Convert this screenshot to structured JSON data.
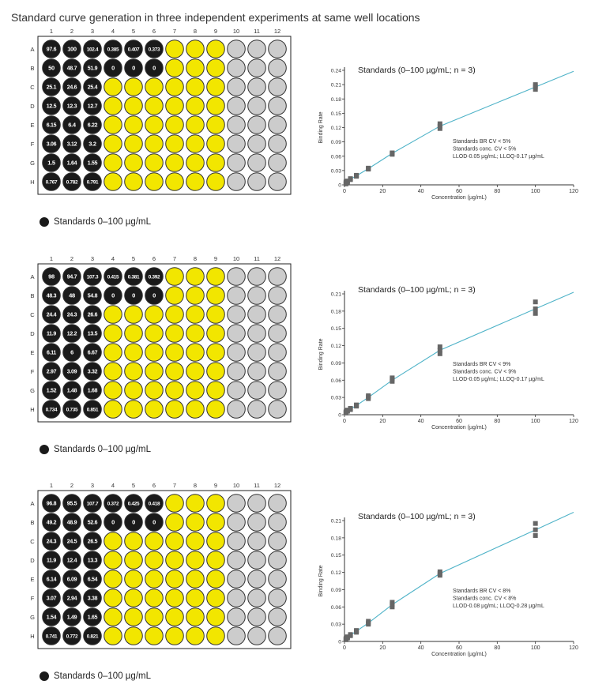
{
  "title": "Standard curve generation in three independent experiments at same well locations",
  "colors": {
    "standard_fill": "#1a1a1a",
    "yellow_fill": "#f2e600",
    "gray_fill": "#cccccc",
    "curve": "#4fb3c8",
    "marker": "#666666"
  },
  "plate": {
    "columns": [
      "1",
      "2",
      "3",
      "4",
      "5",
      "6",
      "7",
      "8",
      "9",
      "10",
      "11",
      "12"
    ],
    "rows": [
      "A",
      "B",
      "C",
      "D",
      "E",
      "F",
      "G",
      "H"
    ],
    "column_fill": [
      "black",
      "black",
      "black",
      "mixed",
      "mixed",
      "mixed",
      "yellow",
      "yellow",
      "yellow",
      "gray",
      "gray",
      "gray"
    ]
  },
  "legend_label": "Standards 0–100 µg/mL",
  "experiments": [
    {
      "well_values": [
        [
          "97.6",
          "100",
          "102.4",
          "0.385",
          "0.407",
          "0.373"
        ],
        [
          "50",
          "48.7",
          "51.9",
          "0",
          "0",
          "0"
        ],
        [
          "25.1",
          "24.6",
          "25.4"
        ],
        [
          "12.5",
          "12.3",
          "12.7"
        ],
        [
          "6.15",
          "6.4",
          "6.22"
        ],
        [
          "3.06",
          "3.12",
          "3.2"
        ],
        [
          "1.5",
          "1.64",
          "1.55"
        ],
        [
          "0.767",
          "0.782",
          "0.791"
        ]
      ],
      "chart_data": {
        "type": "scatter",
        "title": "Standards (0–100 µg/mL; n = 3)",
        "xlabel": "Concentration (µg/mL)",
        "ylabel": "Binding Rate",
        "xlim": [
          0,
          120
        ],
        "ylim": [
          0,
          0.24
        ],
        "xticks": [
          "0",
          "20",
          "40",
          "60",
          "80",
          "100",
          "120"
        ],
        "yticks": [
          "0",
          "0.03",
          "0.06",
          "0.09",
          "0.12",
          "0.15",
          "0.18",
          "0.21",
          "0.24"
        ],
        "series": [
          {
            "x": [
              0.78,
              1.56,
              3.125,
              6.25,
              12.5,
              25,
              50,
              100
            ],
            "y": [
              0.004,
              0.007,
              0.012,
              0.019,
              0.034,
              0.066,
              0.123,
              0.205
            ]
          }
        ],
        "points": [
          [
            0.78,
            0.002
          ],
          [
            0.78,
            0.004
          ],
          [
            0.78,
            0.006
          ],
          [
            1.56,
            0.006
          ],
          [
            1.56,
            0.008
          ],
          [
            1.56,
            0.007
          ],
          [
            3.125,
            0.011
          ],
          [
            3.125,
            0.012
          ],
          [
            3.125,
            0.013
          ],
          [
            6.25,
            0.018
          ],
          [
            6.25,
            0.02
          ],
          [
            6.25,
            0.019
          ],
          [
            12.5,
            0.033
          ],
          [
            12.5,
            0.035
          ],
          [
            12.5,
            0.034
          ],
          [
            25,
            0.064
          ],
          [
            25,
            0.067
          ],
          [
            25,
            0.066
          ],
          [
            50,
            0.118
          ],
          [
            50,
            0.123
          ],
          [
            50,
            0.128
          ],
          [
            100,
            0.2
          ],
          [
            100,
            0.206
          ],
          [
            100,
            0.21
          ]
        ],
        "annotations": [
          "Standards BR CV     < 5%",
          "Standards conc. CV   < 5%",
          "LLOD-0.05 µg/mL; LLOQ-0.17 µg/mL"
        ]
      }
    },
    {
      "well_values": [
        [
          "98",
          "94.7",
          "107.3",
          "0.415",
          "0.381",
          "0.392"
        ],
        [
          "48.3",
          "48",
          "54.8",
          "0",
          "0",
          "0"
        ],
        [
          "24.4",
          "24.3",
          "26.6"
        ],
        [
          "11.9",
          "12.2",
          "13.5"
        ],
        [
          "6.11",
          "6",
          "6.67"
        ],
        [
          "2.97",
          "3.09",
          "3.32"
        ],
        [
          "1.52",
          "1.48",
          "1.68"
        ],
        [
          "0.734",
          "0.735",
          "0.851"
        ]
      ],
      "chart_data": {
        "type": "scatter",
        "title": "Standards (0–100 µg/mL; n = 3)",
        "xlabel": "Concentration (µg/mL)",
        "ylabel": "Binding Rate",
        "xlim": [
          0,
          120
        ],
        "ylim": [
          0,
          0.21
        ],
        "xticks": [
          "0",
          "20",
          "40",
          "60",
          "80",
          "100",
          "120"
        ],
        "yticks": [
          "0",
          "0.03",
          "0.06",
          "0.09",
          "0.12",
          "0.15",
          "0.18",
          "0.21"
        ],
        "series": [
          {
            "x": [
              0.78,
              1.56,
              3.125,
              6.25,
              12.5,
              25,
              50,
              100
            ],
            "y": [
              0.004,
              0.007,
              0.01,
              0.016,
              0.03,
              0.06,
              0.112,
              0.184
            ]
          }
        ],
        "points": [
          [
            0.78,
            0.003
          ],
          [
            0.78,
            0.005
          ],
          [
            0.78,
            0.004
          ],
          [
            1.56,
            0.006
          ],
          [
            1.56,
            0.008
          ],
          [
            1.56,
            0.007
          ],
          [
            3.125,
            0.009
          ],
          [
            3.125,
            0.011
          ],
          [
            3.125,
            0.01
          ],
          [
            6.25,
            0.015
          ],
          [
            6.25,
            0.017
          ],
          [
            6.25,
            0.016
          ],
          [
            12.5,
            0.028
          ],
          [
            12.5,
            0.033
          ],
          [
            12.5,
            0.031
          ],
          [
            25,
            0.058
          ],
          [
            25,
            0.062
          ],
          [
            25,
            0.064
          ],
          [
            50,
            0.106
          ],
          [
            50,
            0.112
          ],
          [
            50,
            0.118
          ],
          [
            100,
            0.176
          ],
          [
            100,
            0.184
          ],
          [
            100,
            0.196
          ]
        ],
        "annotations": [
          "Standards BR CV      < 9%",
          "Standards conc. CV   < 9%",
          "LLOD-0.05 µg/mL; LLOQ-0.17 µg/mL"
        ]
      }
    },
    {
      "well_values": [
        [
          "96.8",
          "95.5",
          "107.7",
          "0.372",
          "0.425",
          "0.418"
        ],
        [
          "49.2",
          "48.9",
          "52.6",
          "0",
          "0",
          "0"
        ],
        [
          "24.3",
          "24.5",
          "26.5"
        ],
        [
          "11.9",
          "12.4",
          "13.3"
        ],
        [
          "6.14",
          "6.09",
          "6.54"
        ],
        [
          "3.07",
          "2.94",
          "3.38"
        ],
        [
          "1.54",
          "1.49",
          "1.65"
        ],
        [
          "0.741",
          "0.772",
          "0.821"
        ]
      ],
      "chart_data": {
        "type": "scatter",
        "title": "Standards (0–100 µg/mL; n = 3)",
        "xlabel": "Concentration (µg/mL)",
        "ylabel": "Binding Rate",
        "xlim": [
          0,
          120
        ],
        "ylim": [
          0,
          0.21
        ],
        "xticks": [
          "0",
          "20",
          "40",
          "60",
          "80",
          "100",
          "120"
        ],
        "yticks": [
          "0",
          "0.03",
          "0.06",
          "0.09",
          "0.12",
          "0.15",
          "0.18",
          "0.21"
        ],
        "series": [
          {
            "x": [
              0.78,
              1.56,
              3.125,
              6.25,
              12.5,
              25,
              50,
              100
            ],
            "y": [
              0.004,
              0.007,
              0.011,
              0.018,
              0.032,
              0.064,
              0.118,
              0.194
            ]
          }
        ],
        "points": [
          [
            0.78,
            0.003
          ],
          [
            0.78,
            0.005
          ],
          [
            0.78,
            0.004
          ],
          [
            1.56,
            0.006
          ],
          [
            1.56,
            0.008
          ],
          [
            1.56,
            0.007
          ],
          [
            3.125,
            0.01
          ],
          [
            3.125,
            0.012
          ],
          [
            3.125,
            0.011
          ],
          [
            6.25,
            0.016
          ],
          [
            6.25,
            0.019
          ],
          [
            6.25,
            0.018
          ],
          [
            12.5,
            0.03
          ],
          [
            12.5,
            0.035
          ],
          [
            12.5,
            0.032
          ],
          [
            25,
            0.06
          ],
          [
            25,
            0.064
          ],
          [
            25,
            0.068
          ],
          [
            50,
            0.115
          ],
          [
            50,
            0.118
          ],
          [
            50,
            0.121
          ],
          [
            100,
            0.184
          ],
          [
            100,
            0.194
          ],
          [
            100,
            0.205
          ]
        ],
        "annotations": [
          "Standards BR CV      < 8%",
          "Standards conc. CV    < 8%",
          "LLOD-0.08 µg/mL; LLOQ-0.28 µg/mL"
        ]
      }
    }
  ]
}
